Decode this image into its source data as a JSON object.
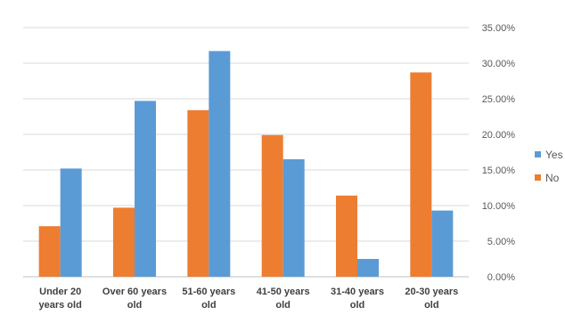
{
  "chart_data": {
    "type": "bar",
    "categories": [
      [
        "Under 20",
        "years old"
      ],
      [
        "Over 60 years",
        "old"
      ],
      [
        "51-60 years",
        "old"
      ],
      [
        "41-50 years",
        "old"
      ],
      [
        "31-40 years",
        "old"
      ],
      [
        "20-30 years",
        "old"
      ]
    ],
    "series": [
      {
        "name": "No",
        "color": "#ED7D31",
        "values": [
          0.071,
          0.097,
          0.234,
          0.199,
          0.114,
          0.287
        ]
      },
      {
        "name": "Yes",
        "color": "#5B9BD5",
        "values": [
          0.152,
          0.247,
          0.317,
          0.165,
          0.025,
          0.093
        ]
      }
    ],
    "ylim": [
      0,
      0.35
    ],
    "yticks": [
      "0.00%",
      "5.00%",
      "10.00%",
      "15.00%",
      "20.00%",
      "25.00%",
      "30.00%",
      "35.00%"
    ],
    "y_axis_position": "right",
    "grid": true,
    "legend": {
      "placement": "right",
      "entries": [
        "Yes",
        "No"
      ]
    }
  }
}
